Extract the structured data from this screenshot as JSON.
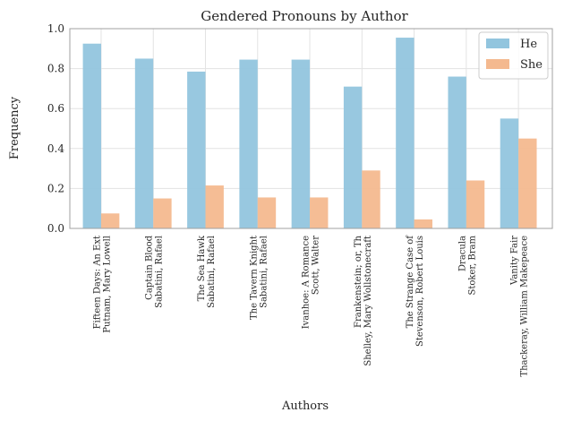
{
  "chart_data": {
    "type": "bar",
    "title": "Gendered Pronouns by Author",
    "xlabel": "Authors",
    "ylabel": "Frequency",
    "ylim": [
      0,
      1.0
    ],
    "yticks": [
      "0.0",
      "0.2",
      "0.4",
      "0.6",
      "0.8",
      "1.0"
    ],
    "grid": true,
    "legend_position": "top-right",
    "categories": [
      [
        "Fifteen Days: An Ext",
        "Putnam, Mary Lowell"
      ],
      [
        "Captain Blood",
        "Sabatini, Rafael"
      ],
      [
        "The Sea Hawk",
        "Sabatini, Rafael"
      ],
      [
        "The Tavern Knight",
        "Sabatini, Rafael"
      ],
      [
        "Ivanhoe: A Romance",
        "Scott, Walter"
      ],
      [
        "Frankenstein; or, Th",
        "Shelley, Mary Wollstonecraft"
      ],
      [
        "The Strange Case of",
        "Stevenson, Robert Louis"
      ],
      [
        "Dracula",
        "Stoker, Bram"
      ],
      [
        "Vanity Fair",
        "Thackeray, William Makepeace"
      ]
    ],
    "series": [
      {
        "name": "He",
        "color": "#92c5de",
        "values": [
          0.925,
          0.85,
          0.785,
          0.845,
          0.845,
          0.71,
          0.955,
          0.76,
          0.55
        ]
      },
      {
        "name": "She",
        "color": "#f4b98f",
        "values": [
          0.075,
          0.15,
          0.215,
          0.155,
          0.155,
          0.29,
          0.045,
          0.24,
          0.45
        ]
      }
    ]
  }
}
